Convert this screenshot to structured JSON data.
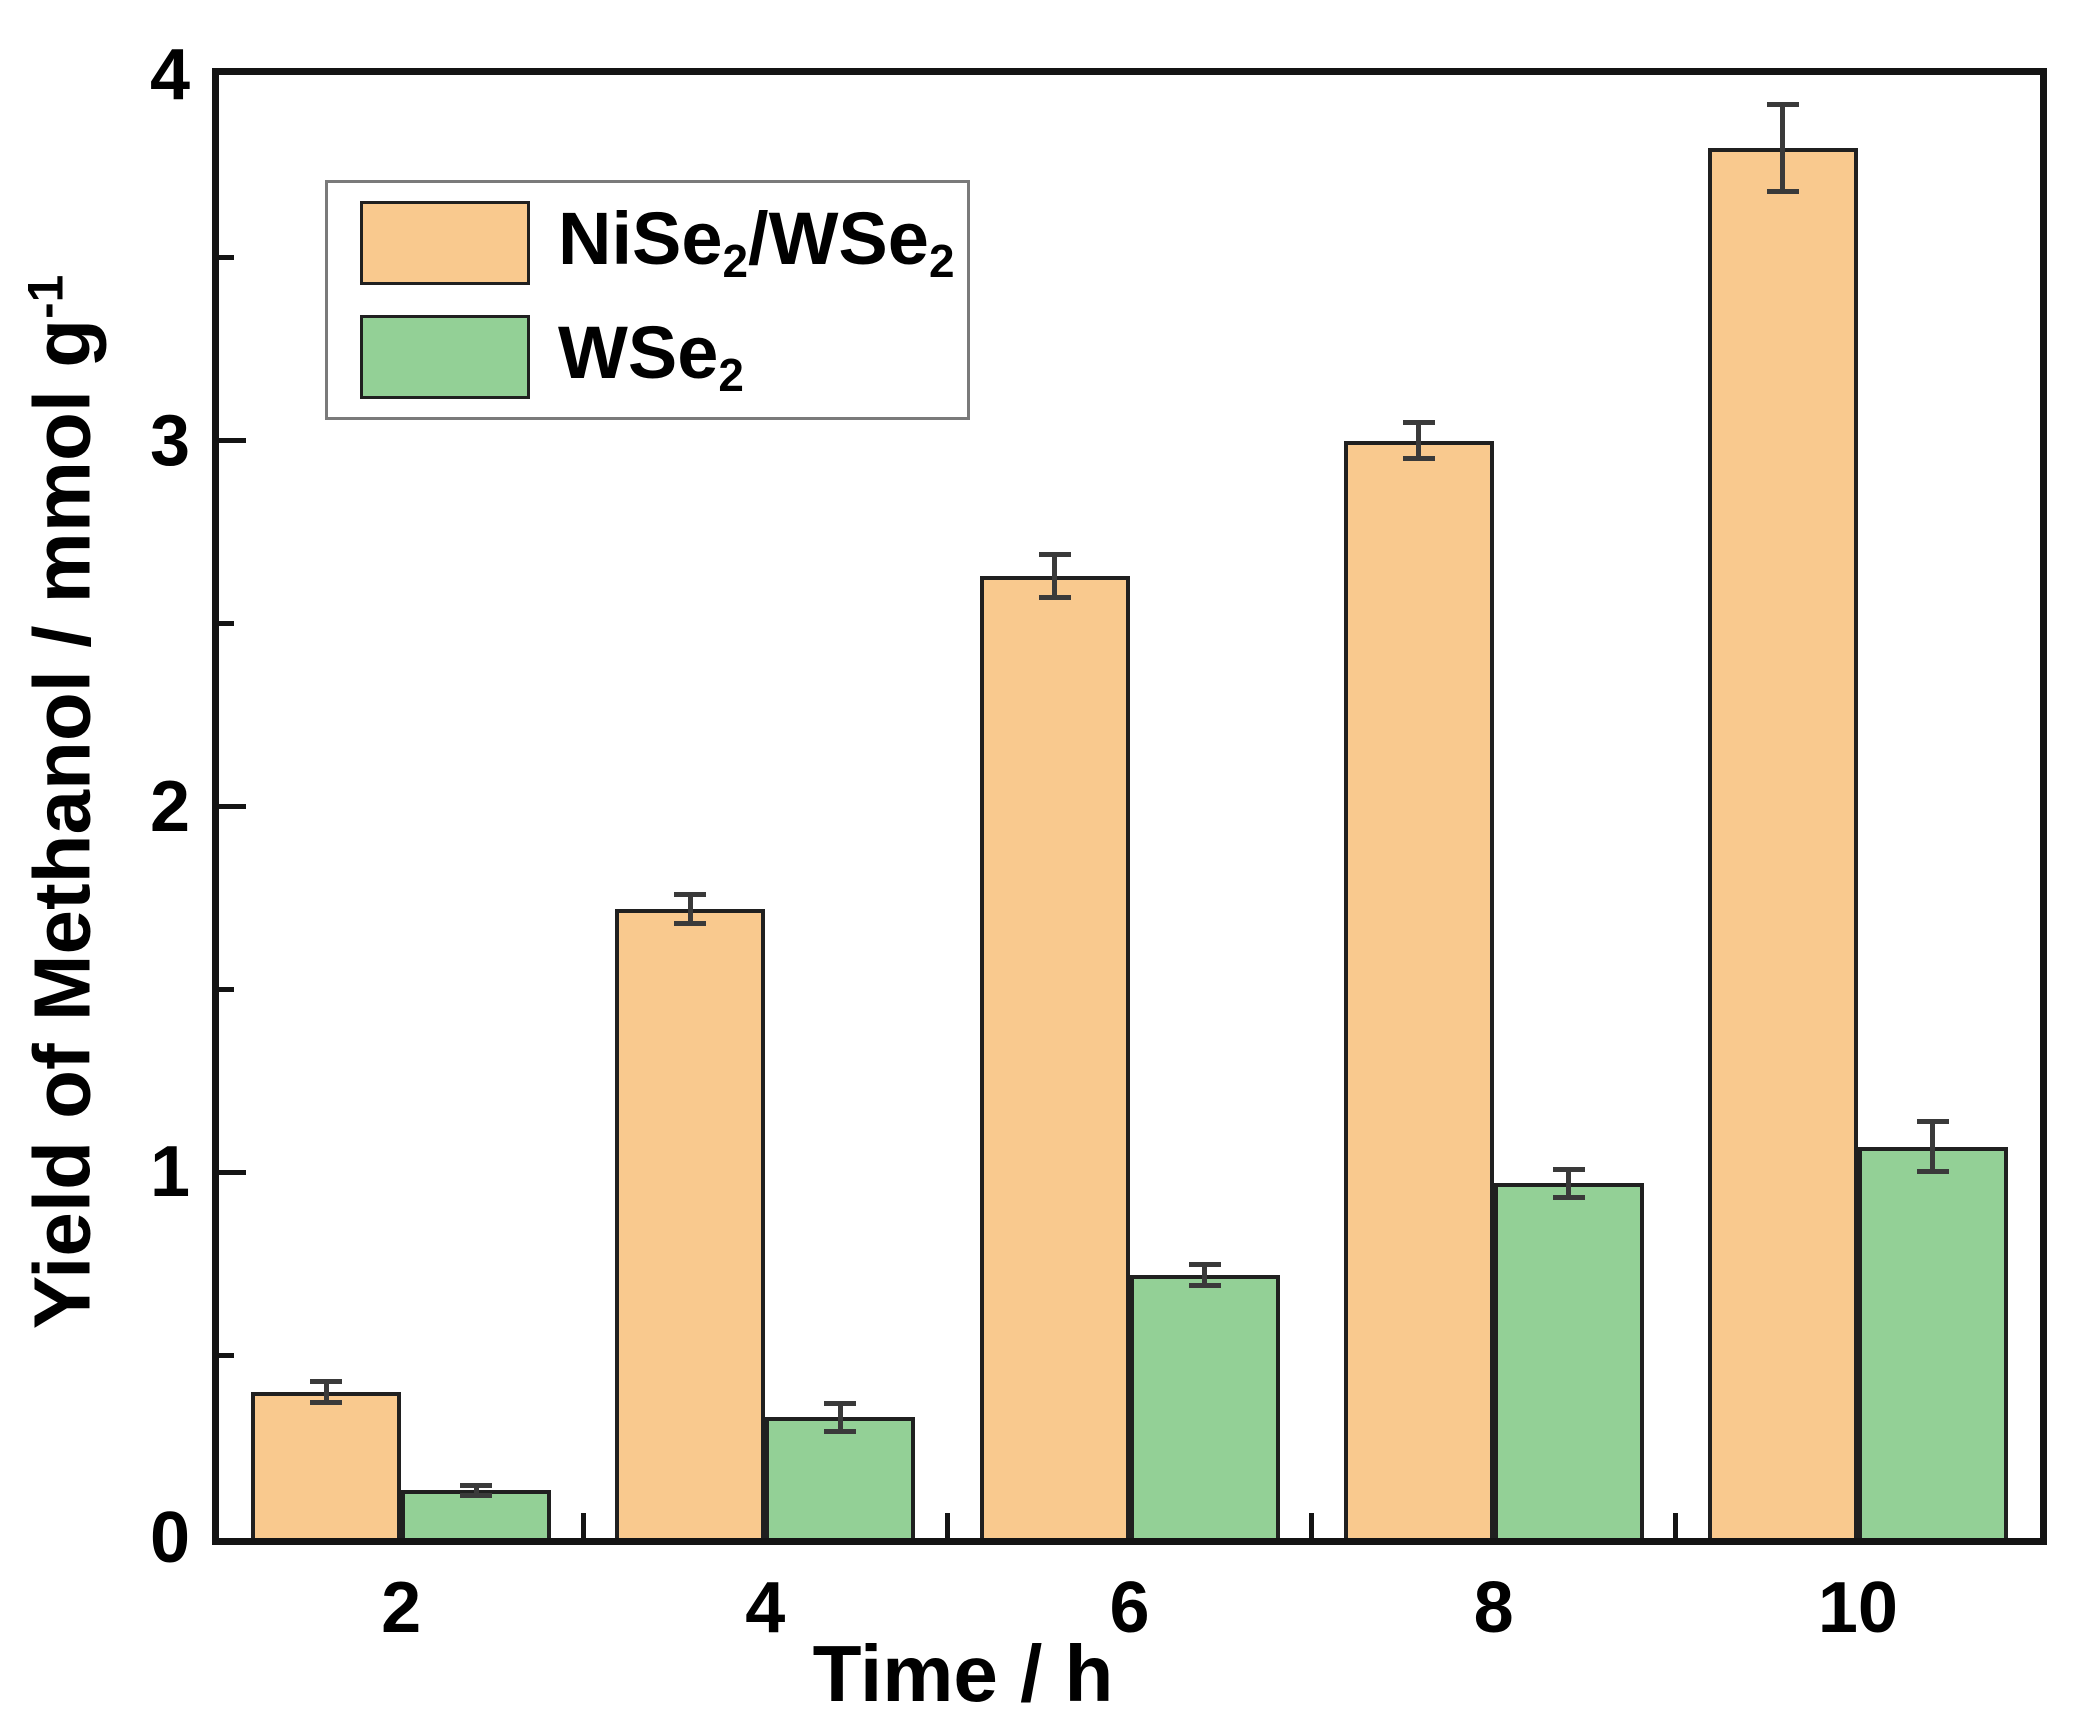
{
  "figure": {
    "background": "#ffffff"
  },
  "colors": {
    "series1_fill": "#f9c98e",
    "series2_fill": "#93d096",
    "bar_border": "#202020",
    "error_bar": "#3a3a3a",
    "axis_frame": "#141414",
    "legend_border": "#7a7a7a",
    "text": "#000000"
  },
  "chart_data": {
    "type": "bar",
    "title": "",
    "xlabel": "Time / h",
    "ylabel": "Yield of Methanol / mmol g⁻¹",
    "xlabel_segments": [
      {
        "t": "Time / h"
      }
    ],
    "ylabel_segments": [
      {
        "t": "Yield of Methanol / mmol g"
      },
      {
        "t": "-1",
        "sup": true
      }
    ],
    "categories": [
      2,
      4,
      6,
      8,
      10
    ],
    "x_tick_labels": [
      "2",
      "4",
      "6",
      "8",
      "10"
    ],
    "y_tick_labels": [
      "0",
      "1",
      "2",
      "3",
      "4"
    ],
    "y_major_ticks": [
      1,
      2,
      3
    ],
    "y_minor_ticks": [
      0.5,
      1.5,
      2.5,
      3.5
    ],
    "x_boundary_ticks_hours": [
      3,
      5,
      7,
      9
    ],
    "xlim_hours": [
      1,
      11
    ],
    "ylim": [
      0,
      4
    ],
    "grid": false,
    "legend_position": "upper-left",
    "series": [
      {
        "name": "NiSe2/WSe2",
        "name_segments": [
          {
            "t": "NiSe"
          },
          {
            "t": "2",
            "sub": true
          },
          {
            "t": "/WSe"
          },
          {
            "t": "2",
            "sub": true
          }
        ],
        "color": "#f9c98e",
        "values": [
          0.4,
          1.72,
          2.63,
          3.0,
          3.8
        ],
        "errors": [
          0.03,
          0.04,
          0.06,
          0.05,
          0.12
        ]
      },
      {
        "name": "WSe2",
        "name_segments": [
          {
            "t": "WSe"
          },
          {
            "t": "2",
            "sub": true
          }
        ],
        "color": "#93d096",
        "values": [
          0.13,
          0.33,
          0.72,
          0.97,
          1.07
        ],
        "errors": [
          0.015,
          0.04,
          0.03,
          0.04,
          0.07
        ]
      }
    ]
  }
}
